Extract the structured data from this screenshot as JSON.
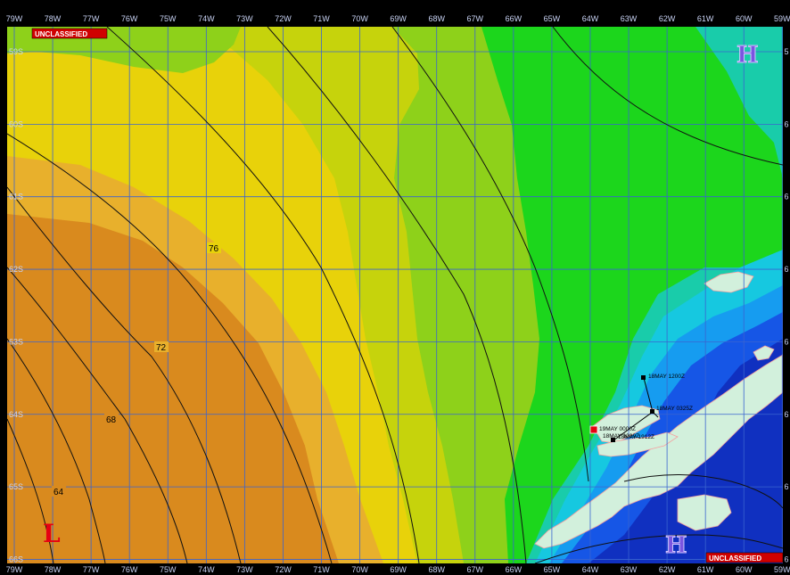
{
  "map": {
    "classification": {
      "top_left": "UNCLASSIFIED",
      "bottom_right": "UNCLASSIFIED"
    },
    "longitude_labels": [
      "79W",
      "78W",
      "77W",
      "76W",
      "75W",
      "74W",
      "73W",
      "72W",
      "71W",
      "70W",
      "69W",
      "68W",
      "67W",
      "66W",
      "65W",
      "64W",
      "63W",
      "62W",
      "61W",
      "60W",
      "59W"
    ],
    "latitude_labels": [
      "59S",
      "60S",
      "61S",
      "62S",
      "63S",
      "64S",
      "65S",
      "66S"
    ],
    "right_edge_labels": [
      "5",
      "6",
      "6",
      "6",
      "6",
      "6",
      "6",
      "6"
    ],
    "pressure_centers": [
      {
        "symbol": "L",
        "type": "low"
      },
      {
        "symbol": "H",
        "type": "high"
      },
      {
        "symbol": "H",
        "type": "high"
      }
    ],
    "contour_labels": [
      "76",
      "72",
      "68",
      "64"
    ],
    "track_points": [
      {
        "label": "19MAY 0000Z"
      },
      {
        "label": "18MAY 1200Z"
      },
      {
        "label": "18MAY 0325Z"
      },
      {
        "label": "18MAY 1000Z"
      },
      {
        "label": "18MAY 1912Z"
      }
    ],
    "colors": {
      "orange_dark": "#d98a1e",
      "orange_light": "#e8b02c",
      "yellow": "#e8d20a",
      "yellow_green": "#c6d30c",
      "lime": "#8ed11a",
      "green": "#1cd61c",
      "teal": "#19ccaa",
      "cyan": "#16c8e0",
      "sky": "#169cf0",
      "blue": "#1656e6",
      "navy": "#1030c0",
      "land": "#d2f0dc",
      "grid": "#3a64d0",
      "low_marker": "#e60012",
      "high_marker": "#7a55e0",
      "classification_bg": "#d00000"
    }
  }
}
